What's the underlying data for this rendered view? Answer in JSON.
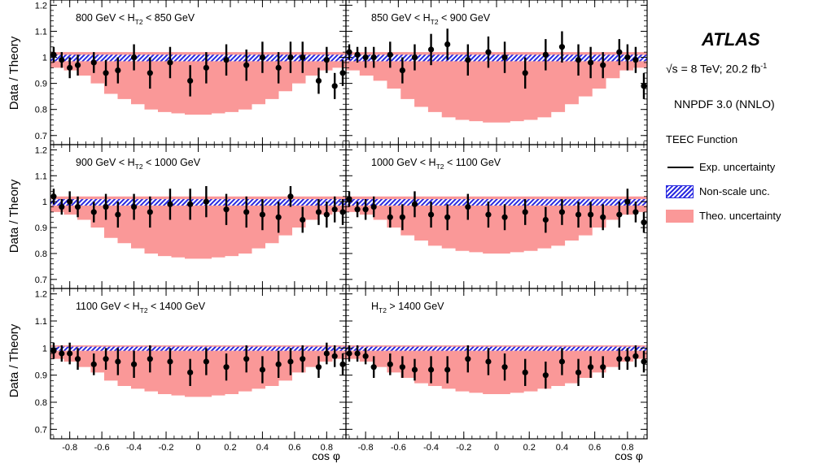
{
  "figure": {
    "experiment": "ATLAS",
    "energy_text": "√s = 8 TeV; 20.2 fb",
    "energy_sup": "-1",
    "pdf_text": "NNPDF 3.0 (NNLO)",
    "ylabel": "Data / Theory",
    "xlabel": "cos φ",
    "legend": {
      "header": "TEEC Function",
      "items": [
        {
          "label": "Exp. uncertainty",
          "style": "line"
        },
        {
          "label": "Non-scale unc.",
          "style": "hatch"
        },
        {
          "label": "Theo. uncertainty",
          "style": "fill"
        }
      ]
    },
    "colors": {
      "theory_band": "#fa9898",
      "nonscale_band": "#2a2ae0",
      "data": "#000000"
    }
  },
  "chart_data": {
    "type": "scatter",
    "x": [
      -0.9,
      -0.85,
      -0.8,
      -0.75,
      -0.65,
      -0.575,
      -0.5,
      -0.4,
      -0.3,
      -0.175,
      -0.05,
      0.05,
      0.175,
      0.3,
      0.4,
      0.5,
      0.575,
      0.65,
      0.75,
      0.8,
      0.85,
      0.9
    ],
    "xlim": [
      -0.92,
      0.92
    ],
    "ylim": [
      0.665,
      1.22
    ],
    "yticks": [
      0.7,
      0.8,
      0.9,
      1.0,
      1.1,
      1.2
    ],
    "yticklabels": [
      "0.7",
      "0.8",
      "0.9",
      "1",
      "1.1",
      "1.2"
    ],
    "xticks": [
      -0.8,
      -0.6,
      -0.4,
      -0.2,
      0,
      0.2,
      0.4,
      0.6,
      0.8
    ],
    "xticklabels": [
      "-0.8",
      "-0.6",
      "-0.4",
      "-0.2",
      "0",
      "0.2",
      "0.4",
      "0.6",
      "0.8"
    ],
    "panels": [
      {
        "label": "800 GeV < H",
        "label_sub": "T2",
        "label_tail": " < 850 GeV",
        "y": [
          1.01,
          0.99,
          0.96,
          0.97,
          0.98,
          0.94,
          0.95,
          1.0,
          0.94,
          0.98,
          0.91,
          0.96,
          0.99,
          0.97,
          1.0,
          0.96,
          1.0,
          1.0,
          0.91,
          0.99,
          0.89,
          0.94
        ],
        "err": [
          0.03,
          0.03,
          0.04,
          0.04,
          0.04,
          0.05,
          0.05,
          0.05,
          0.06,
          0.06,
          0.06,
          0.06,
          0.06,
          0.06,
          0.06,
          0.06,
          0.06,
          0.06,
          0.05,
          0.05,
          0.05,
          0.05
        ],
        "theory_low": [
          0.96,
          0.95,
          0.93,
          0.9,
          0.86,
          0.84,
          0.82,
          0.8,
          0.79,
          0.785,
          0.78,
          0.78,
          0.785,
          0.79,
          0.8,
          0.82,
          0.84,
          0.87,
          0.9,
          0.93,
          0.95,
          0.96
        ],
        "theory_high": 1.02,
        "nonscale": [
          0.985,
          1.01
        ]
      },
      {
        "label": "850 GeV < H",
        "label_sub": "T2",
        "label_tail": " < 900 GeV",
        "y": [
          1.02,
          1.01,
          1.0,
          1.0,
          1.01,
          0.95,
          1.0,
          1.03,
          1.05,
          0.99,
          1.02,
          1.0,
          0.94,
          1.01,
          1.04,
          0.99,
          0.98,
          0.97,
          1.02,
          1.0,
          0.99,
          0.89
        ],
        "err": [
          0.03,
          0.03,
          0.04,
          0.04,
          0.05,
          0.05,
          0.05,
          0.06,
          0.06,
          0.06,
          0.06,
          0.06,
          0.06,
          0.06,
          0.06,
          0.06,
          0.06,
          0.05,
          0.05,
          0.05,
          0.05,
          0.05
        ],
        "theory_low": [
          0.95,
          0.93,
          0.91,
          0.88,
          0.84,
          0.81,
          0.79,
          0.77,
          0.76,
          0.755,
          0.75,
          0.75,
          0.755,
          0.76,
          0.77,
          0.79,
          0.82,
          0.85,
          0.88,
          0.92,
          0.95,
          0.96
        ],
        "theory_high": 1.02,
        "nonscale": [
          0.985,
          1.01
        ]
      },
      {
        "label": "900 GeV < H",
        "label_sub": "T2",
        "label_tail": " < 1000 GeV",
        "y": [
          1.02,
          0.98,
          1.0,
          0.98,
          0.96,
          0.98,
          0.95,
          0.98,
          0.96,
          0.99,
          0.99,
          1.0,
          0.97,
          0.96,
          0.95,
          0.94,
          1.02,
          0.93,
          0.96,
          0.95,
          0.97,
          0.96
        ],
        "err": [
          0.03,
          0.03,
          0.04,
          0.04,
          0.04,
          0.05,
          0.05,
          0.05,
          0.06,
          0.06,
          0.06,
          0.06,
          0.06,
          0.06,
          0.06,
          0.06,
          0.04,
          0.05,
          0.05,
          0.05,
          0.05,
          0.05
        ],
        "theory_low": [
          0.96,
          0.95,
          0.93,
          0.9,
          0.86,
          0.84,
          0.82,
          0.8,
          0.79,
          0.785,
          0.78,
          0.78,
          0.785,
          0.79,
          0.8,
          0.82,
          0.84,
          0.87,
          0.9,
          0.93,
          0.95,
          0.96
        ],
        "theory_high": 1.02,
        "nonscale": [
          0.985,
          1.01
        ]
      },
      {
        "label": "1000 GeV < H",
        "label_sub": "T2",
        "label_tail": " < 1100 GeV",
        "y": [
          1.01,
          0.97,
          0.97,
          0.98,
          0.94,
          0.94,
          0.99,
          0.95,
          0.94,
          0.98,
          0.95,
          0.94,
          0.96,
          0.93,
          0.96,
          0.95,
          0.95,
          0.94,
          0.95,
          1.0,
          0.96,
          0.92
        ],
        "err": [
          0.03,
          0.03,
          0.04,
          0.04,
          0.04,
          0.05,
          0.05,
          0.05,
          0.05,
          0.05,
          0.05,
          0.05,
          0.05,
          0.05,
          0.05,
          0.05,
          0.05,
          0.05,
          0.05,
          0.05,
          0.04,
          0.04
        ],
        "theory_low": [
          0.96,
          0.95,
          0.93,
          0.9,
          0.87,
          0.85,
          0.83,
          0.82,
          0.81,
          0.805,
          0.8,
          0.8,
          0.805,
          0.81,
          0.82,
          0.83,
          0.85,
          0.87,
          0.9,
          0.93,
          0.95,
          0.96
        ],
        "theory_high": 1.02,
        "nonscale": [
          0.985,
          1.01
        ]
      },
      {
        "label": "1100 GeV < H",
        "label_sub": "T2",
        "label_tail": " < 1400 GeV",
        "y": [
          0.99,
          0.98,
          0.98,
          0.96,
          0.94,
          0.96,
          0.95,
          0.94,
          0.96,
          0.95,
          0.91,
          0.95,
          0.93,
          0.96,
          0.92,
          0.94,
          0.95,
          0.96,
          0.93,
          0.98,
          0.97,
          0.94
        ],
        "err": [
          0.03,
          0.03,
          0.04,
          0.04,
          0.04,
          0.04,
          0.05,
          0.05,
          0.05,
          0.05,
          0.05,
          0.05,
          0.05,
          0.05,
          0.05,
          0.05,
          0.05,
          0.05,
          0.04,
          0.04,
          0.04,
          0.04
        ],
        "theory_low": [
          0.96,
          0.95,
          0.93,
          0.91,
          0.88,
          0.86,
          0.85,
          0.84,
          0.83,
          0.825,
          0.82,
          0.82,
          0.825,
          0.83,
          0.84,
          0.85,
          0.86,
          0.88,
          0.91,
          0.93,
          0.95,
          0.96
        ],
        "theory_high": 1.01,
        "nonscale": [
          0.99,
          1.005
        ]
      },
      {
        "label": "H",
        "label_sub": "T2",
        "label_tail": " > 1400 GeV",
        "y": [
          0.98,
          0.98,
          0.97,
          0.93,
          0.94,
          0.93,
          0.92,
          0.92,
          0.92,
          0.96,
          0.95,
          0.93,
          0.91,
          0.9,
          0.95,
          0.91,
          0.93,
          0.93,
          0.96,
          0.96,
          0.97,
          0.95
        ],
        "err": [
          0.03,
          0.03,
          0.03,
          0.04,
          0.04,
          0.04,
          0.04,
          0.05,
          0.05,
          0.05,
          0.05,
          0.05,
          0.05,
          0.05,
          0.05,
          0.05,
          0.04,
          0.04,
          0.04,
          0.04,
          0.04,
          0.04
        ],
        "theory_low": [
          0.96,
          0.95,
          0.93,
          0.91,
          0.89,
          0.87,
          0.86,
          0.85,
          0.84,
          0.835,
          0.83,
          0.83,
          0.835,
          0.84,
          0.85,
          0.86,
          0.87,
          0.89,
          0.91,
          0.93,
          0.95,
          0.96
        ],
        "theory_high": 1.01,
        "nonscale": [
          0.99,
          1.005
        ]
      }
    ]
  }
}
